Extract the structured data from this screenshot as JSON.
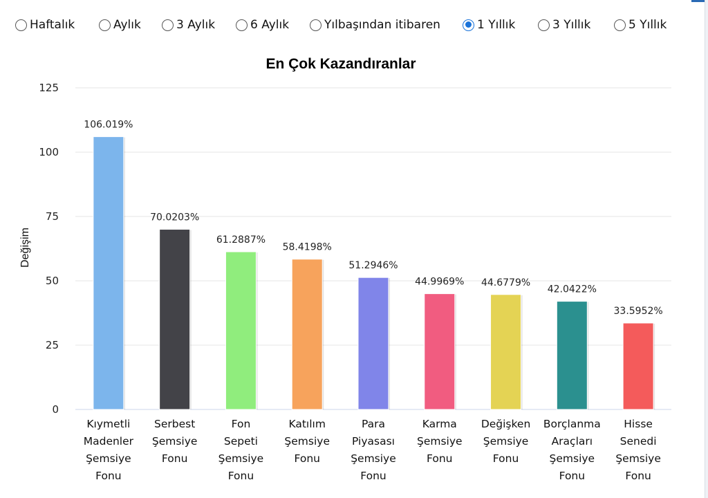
{
  "period_selector": {
    "options": [
      {
        "label": "Haftalık",
        "checked": false
      },
      {
        "label": "Aylık",
        "checked": false
      },
      {
        "label": "3 Aylık",
        "checked": false
      },
      {
        "label": "6 Aylık",
        "checked": false
      },
      {
        "label": "Yılbaşından itibaren",
        "checked": false
      },
      {
        "label": "1 Yıllık",
        "checked": true
      },
      {
        "label": "3 Yıllık",
        "checked": false
      },
      {
        "label": "5 Yıllık",
        "checked": false
      }
    ]
  },
  "chart_data": {
    "type": "bar",
    "title": "En Çok Kazandıranlar",
    "xlabel": "",
    "ylabel": "Değişim",
    "ylim": [
      0,
      125
    ],
    "yticks": [
      0,
      25,
      50,
      75,
      100,
      125
    ],
    "grid": true,
    "categories": [
      [
        "Kıymetli",
        "Madenler",
        "Şemsiye",
        "Fonu"
      ],
      [
        "Serbest",
        "Şemsiye",
        "Fonu"
      ],
      [
        "Fon",
        "Sepeti",
        "Şemsiye",
        "Fonu"
      ],
      [
        "Katılım",
        "Şemsiye",
        "Fonu"
      ],
      [
        "Para",
        "Piyasası",
        "Şemsiye",
        "Fonu"
      ],
      [
        "Karma",
        "Şemsiye",
        "Fonu"
      ],
      [
        "Değişken",
        "Şemsiye",
        "Fonu"
      ],
      [
        "Borçlanma",
        "Araçları",
        "Şemsiye",
        "Fonu"
      ],
      [
        "Hisse",
        "Senedi",
        "Şemsiye",
        "Fonu"
      ]
    ],
    "values": [
      106.019,
      70.0203,
      61.2887,
      58.4198,
      51.2946,
      44.9969,
      44.6779,
      42.0422,
      33.5952
    ],
    "data_labels": [
      "106.019%",
      "70.0203%",
      "61.2887%",
      "58.4198%",
      "51.2946%",
      "44.9969%",
      "44.6779%",
      "42.0422%",
      "33.5952%"
    ],
    "colors": [
      "#7cb5ec",
      "#434348",
      "#90ed7d",
      "#f7a35c",
      "#8085e9",
      "#f15c80",
      "#e4d354",
      "#2b908f",
      "#f45b5b"
    ]
  }
}
